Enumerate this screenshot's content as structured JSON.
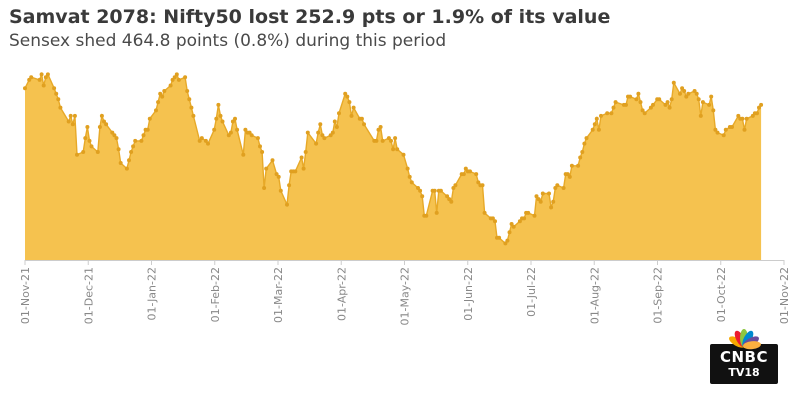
{
  "header": {
    "title": "Samvat 2078: Nifty50 lost 252.9 pts or 1.9% of its value",
    "subtitle": "Sensex shed 464.8 points (0.8%) during this period"
  },
  "logo": {
    "text": "CNBC",
    "subtext": "TV18",
    "peacock_colors": [
      "#f7a800",
      "#ec1c2e",
      "#8dc63f",
      "#0089cf",
      "#6a4c9c",
      "#fbb040"
    ]
  },
  "chart_data": {
    "type": "area",
    "title": "Samvat 2078: Nifty50 lost 252.9 pts or 1.9% of its value",
    "subtitle": "Sensex shed 464.8 points (0.8%) during this period",
    "xlabel": "",
    "ylabel": "",
    "y_axis_shown": false,
    "grid": false,
    "colors": {
      "fill": "#f5c24f",
      "line": "#e7a928",
      "marker": "#e0a020",
      "axis": "#cccccc",
      "tick_label": "#888888"
    },
    "x_ticks": [
      "01-Nov-21",
      "01-Dec-21",
      "01-Jan-22",
      "01-Feb-22",
      "01-Mar-22",
      "01-Apr-22",
      "01-May-22",
      "01-Jun-22",
      "01-Jul-22",
      "01-Aug-22",
      "01-Sep-22",
      "01-Oct-22",
      "01-Nov-22"
    ],
    "x_range": [
      "2021-11-01",
      "2022-11-01"
    ],
    "y_range": [
      15000,
      18700
    ],
    "x": [
      "2021-11-01",
      "2021-11-03",
      "2021-11-04",
      "2021-11-08",
      "2021-11-09",
      "2021-11-10",
      "2021-11-11",
      "2021-11-12",
      "2021-11-15",
      "2021-11-16",
      "2021-11-17",
      "2021-11-18",
      "2021-11-22",
      "2021-11-23",
      "2021-11-24",
      "2021-11-25",
      "2021-11-26",
      "2021-11-29",
      "2021-11-30",
      "2021-12-01",
      "2021-12-02",
      "2021-12-03",
      "2021-12-06",
      "2021-12-07",
      "2021-12-08",
      "2021-12-09",
      "2021-12-10",
      "2021-12-13",
      "2021-12-14",
      "2021-12-15",
      "2021-12-16",
      "2021-12-17",
      "2021-12-20",
      "2021-12-21",
      "2021-12-22",
      "2021-12-23",
      "2021-12-24",
      "2021-12-27",
      "2021-12-28",
      "2021-12-29",
      "2021-12-30",
      "2021-12-31",
      "2022-01-03",
      "2022-01-04",
      "2022-01-05",
      "2022-01-06",
      "2022-01-07",
      "2022-01-10",
      "2022-01-11",
      "2022-01-12",
      "2022-01-13",
      "2022-01-14",
      "2022-01-17",
      "2022-01-18",
      "2022-01-19",
      "2022-01-20",
      "2022-01-21",
      "2022-01-24",
      "2022-01-25",
      "2022-01-27",
      "2022-01-28",
      "2022-01-31",
      "2022-02-01",
      "2022-02-02",
      "2022-02-03",
      "2022-02-04",
      "2022-02-07",
      "2022-02-08",
      "2022-02-09",
      "2022-02-10",
      "2022-02-11",
      "2022-02-14",
      "2022-02-15",
      "2022-02-16",
      "2022-02-17",
      "2022-02-18",
      "2022-02-21",
      "2022-02-22",
      "2022-02-23",
      "2022-02-24",
      "2022-02-25",
      "2022-02-28",
      "2022-03-02",
      "2022-03-03",
      "2022-03-04",
      "2022-03-07",
      "2022-03-08",
      "2022-03-09",
      "2022-03-10",
      "2022-03-11",
      "2022-03-14",
      "2022-03-15",
      "2022-03-16",
      "2022-03-17",
      "2022-03-21",
      "2022-03-22",
      "2022-03-23",
      "2022-03-24",
      "2022-03-25",
      "2022-03-28",
      "2022-03-29",
      "2022-03-30",
      "2022-03-31",
      "2022-04-01",
      "2022-04-04",
      "2022-04-05",
      "2022-04-06",
      "2022-04-07",
      "2022-04-08",
      "2022-04-11",
      "2022-04-12",
      "2022-04-13",
      "2022-04-18",
      "2022-04-19",
      "2022-04-20",
      "2022-04-21",
      "2022-04-22",
      "2022-04-25",
      "2022-04-26",
      "2022-04-27",
      "2022-04-28",
      "2022-04-29",
      "2022-05-02",
      "2022-05-04",
      "2022-05-05",
      "2022-05-06",
      "2022-05-09",
      "2022-05-10",
      "2022-05-11",
      "2022-05-12",
      "2022-05-13",
      "2022-05-16",
      "2022-05-17",
      "2022-05-18",
      "2022-05-19",
      "2022-05-20",
      "2022-05-23",
      "2022-05-24",
      "2022-05-25",
      "2022-05-26",
      "2022-05-27",
      "2022-05-30",
      "2022-05-31",
      "2022-06-01",
      "2022-06-02",
      "2022-06-03",
      "2022-06-06",
      "2022-06-07",
      "2022-06-08",
      "2022-06-09",
      "2022-06-10",
      "2022-06-13",
      "2022-06-14",
      "2022-06-15",
      "2022-06-16",
      "2022-06-17",
      "2022-06-20",
      "2022-06-21",
      "2022-06-22",
      "2022-06-23",
      "2022-06-24",
      "2022-06-27",
      "2022-06-28",
      "2022-06-29",
      "2022-06-30",
      "2022-07-01",
      "2022-07-04",
      "2022-07-05",
      "2022-07-06",
      "2022-07-07",
      "2022-07-08",
      "2022-07-11",
      "2022-07-12",
      "2022-07-13",
      "2022-07-14",
      "2022-07-15",
      "2022-07-18",
      "2022-07-19",
      "2022-07-20",
      "2022-07-21",
      "2022-07-22",
      "2022-07-25",
      "2022-07-26",
      "2022-07-27",
      "2022-07-28",
      "2022-07-29",
      "2022-08-01",
      "2022-08-02",
      "2022-08-03",
      "2022-08-04",
      "2022-08-05",
      "2022-08-08",
      "2022-08-10",
      "2022-08-11",
      "2022-08-12",
      "2022-08-16",
      "2022-08-17",
      "2022-08-18",
      "2022-08-19",
      "2022-08-22",
      "2022-08-23",
      "2022-08-24",
      "2022-08-25",
      "2022-08-26",
      "2022-08-29",
      "2022-08-30",
      "2022-09-01",
      "2022-09-02",
      "2022-09-05",
      "2022-09-06",
      "2022-09-07",
      "2022-09-08",
      "2022-09-09",
      "2022-09-12",
      "2022-09-13",
      "2022-09-14",
      "2022-09-15",
      "2022-09-16",
      "2022-09-19",
      "2022-09-20",
      "2022-09-21",
      "2022-09-22",
      "2022-09-23",
      "2022-09-26",
      "2022-09-27",
      "2022-09-28",
      "2022-09-29",
      "2022-09-30",
      "2022-10-03",
      "2022-10-04",
      "2022-10-06",
      "2022-10-07",
      "2022-10-10",
      "2022-10-11",
      "2022-10-12",
      "2022-10-13",
      "2022-10-14",
      "2022-10-17",
      "2022-10-18",
      "2022-10-19",
      "2022-10-20",
      "2022-10-21"
    ],
    "series": [
      {
        "values": [
          18100,
          18250,
          18300,
          18250,
          18350,
          18150,
          18300,
          18350,
          18100,
          18000,
          17900,
          17750,
          17500,
          17600,
          17450,
          17600,
          16900,
          16950,
          17200,
          17400,
          17150,
          17050,
          16950,
          17400,
          17600,
          17500,
          17450,
          17300,
          17250,
          17200,
          17000,
          16750,
          16650,
          16800,
          16950,
          17050,
          17150,
          17150,
          17250,
          17350,
          17350,
          17550,
          17700,
          17850,
          18000,
          17950,
          18050,
          18150,
          18250,
          18300,
          18350,
          18250,
          18300,
          18050,
          17900,
          17750,
          17600,
          17150,
          17200,
          17150,
          17100,
          17350,
          17550,
          17800,
          17600,
          17500,
          17250,
          17300,
          17500,
          17550,
          17350,
          16900,
          17350,
          17300,
          17300,
          17250,
          17200,
          17050,
          16950,
          16300,
          16650,
          16800,
          16550,
          16500,
          16250,
          16000,
          16350,
          16600,
          16600,
          16600,
          16850,
          16650,
          16950,
          17300,
          17100,
          17300,
          17450,
          17250,
          17200,
          17250,
          17300,
          17500,
          17400,
          17650,
          18000,
          17950,
          17850,
          17600,
          17750,
          17550,
          17550,
          17450,
          17150,
          17150,
          17350,
          17400,
          17150,
          17200,
          17150,
          17000,
          17200,
          17000,
          16900,
          16650,
          16500,
          16400,
          16300,
          16250,
          16150,
          15800,
          15800,
          16250,
          16250,
          15850,
          16250,
          16250,
          16150,
          16100,
          16050,
          16300,
          16350,
          16550,
          16550,
          16650,
          16600,
          16600,
          16550,
          16400,
          16350,
          16350,
          15850,
          15750,
          15750,
          15700,
          15400,
          15400,
          15300,
          15350,
          15500,
          15650,
          15600,
          15700,
          15750,
          15750,
          15850,
          15850,
          15800,
          16150,
          16100,
          16050,
          16200,
          16200,
          15950,
          16050,
          16300,
          16350,
          16300,
          16550,
          16550,
          16500,
          16700,
          16700,
          16850,
          16950,
          17100,
          17200,
          17350,
          17450,
          17550,
          17350,
          17600,
          17650,
          17650,
          17750,
          17850,
          17800,
          17800,
          17950,
          17950,
          17900,
          18000,
          17850,
          17700,
          17650,
          17750,
          17800,
          17900,
          17900,
          17800,
          17850,
          17750,
          17900,
          18200,
          18000,
          18100,
          18050,
          17950,
          18000,
          18050,
          18000,
          17900,
          17600,
          17850,
          17800,
          17950,
          17700,
          17350,
          17300,
          17250,
          17350,
          17400,
          17400,
          17600,
          17550,
          17550,
          17350,
          17550,
          17600,
          17650,
          17650,
          17750,
          17800
        ]
      }
    ]
  }
}
